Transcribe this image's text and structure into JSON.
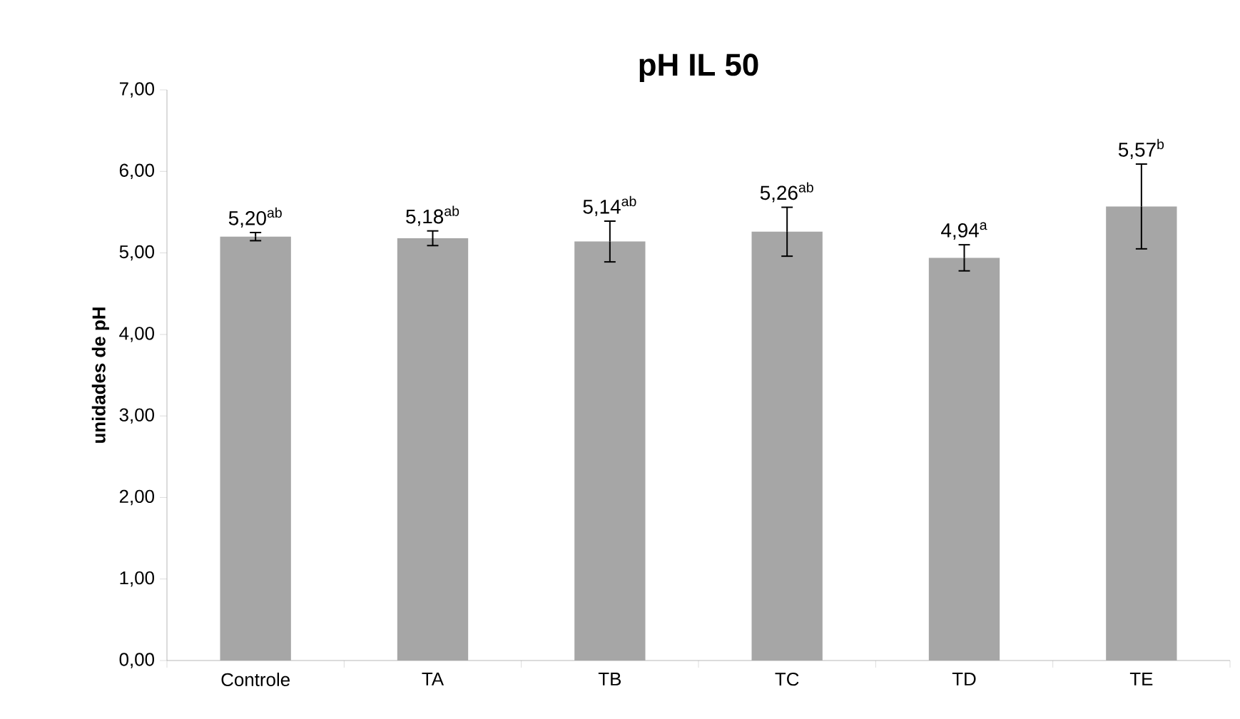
{
  "chart_data": {
    "type": "bar",
    "title": "pH IL 50",
    "ylabel": "unidades de pH",
    "categories": [
      "Controle",
      "TA",
      "TB",
      "TC",
      "TD",
      "TE"
    ],
    "values": [
      5.2,
      5.18,
      5.14,
      5.26,
      4.94,
      5.57
    ],
    "errors": [
      0.05,
      0.09,
      0.25,
      0.3,
      0.16,
      0.52
    ],
    "value_labels": [
      "5,20$^{ab}$",
      "5,18$^{ab}$",
      "5,14$^{ab}$",
      "5,26$^{ab}$",
      "4,94$^{a}$",
      "5,57$^{b}$"
    ],
    "color": "#a6a6a6",
    "ylim": [
      0,
      7
    ],
    "yticks": [
      {
        "value": 0,
        "label": "0,00"
      },
      {
        "value": 1,
        "label": "1,00"
      },
      {
        "value": 2,
        "label": "2,00"
      },
      {
        "value": 3,
        "label": "3,00"
      },
      {
        "value": 4,
        "label": "4,00"
      },
      {
        "value": 5,
        "label": "5,00"
      },
      {
        "value": 6,
        "label": "6,00"
      },
      {
        "value": 7,
        "label": "7,00"
      }
    ],
    "grid": false
  }
}
